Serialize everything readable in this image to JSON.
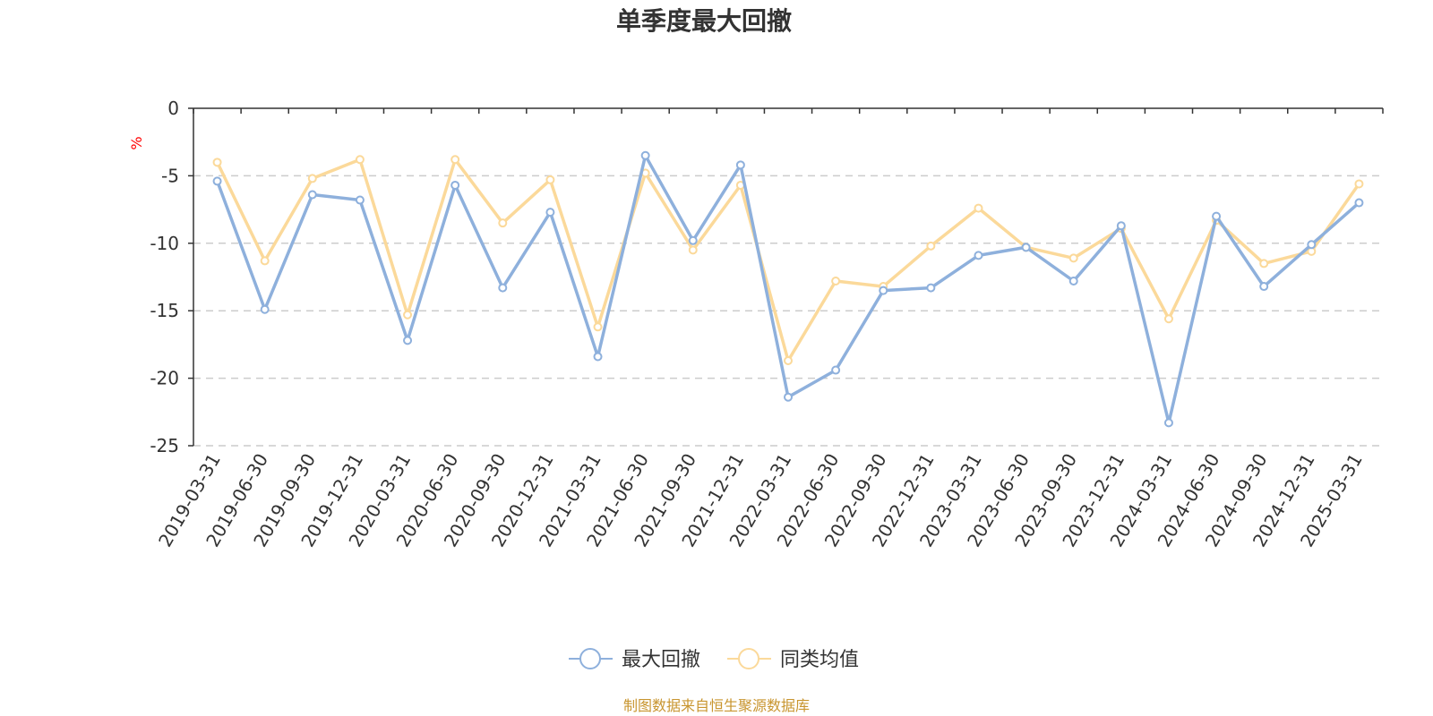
{
  "chart_data": {
    "type": "line",
    "title": "单季度最大回撤",
    "ylabel": "%",
    "ylim": [
      -25,
      0
    ],
    "yticks": [
      0,
      -5,
      -10,
      -15,
      -20,
      -25
    ],
    "grid": "dashed horizontal",
    "legend_position": "bottom-center",
    "categories": [
      "2019-03-31",
      "2019-06-30",
      "2019-09-30",
      "2019-12-31",
      "2020-03-31",
      "2020-06-30",
      "2020-09-30",
      "2020-12-31",
      "2021-03-31",
      "2021-06-30",
      "2021-09-30",
      "2021-12-31",
      "2022-03-31",
      "2022-06-30",
      "2022-09-30",
      "2022-12-31",
      "2023-03-31",
      "2023-06-30",
      "2023-09-30",
      "2023-12-31",
      "2024-03-31",
      "2024-06-30",
      "2024-09-30",
      "2024-12-31",
      "2025-03-31"
    ],
    "series": [
      {
        "name": "最大回撤",
        "color": "#8eb0dc",
        "values": [
          -5.4,
          -14.9,
          -6.4,
          -6.8,
          -17.2,
          -5.7,
          -13.3,
          -7.7,
          -18.4,
          -3.5,
          -9.8,
          -4.2,
          -21.4,
          -19.4,
          -13.5,
          -13.3,
          -10.9,
          -10.3,
          -12.8,
          -8.7,
          -23.3,
          -8.0,
          -13.2,
          -10.1,
          -7.0
        ]
      },
      {
        "name": "同类均值",
        "color": "#fbd99a",
        "values": [
          -4.0,
          -11.3,
          -5.2,
          -3.8,
          -15.3,
          -3.8,
          -8.5,
          -5.3,
          -16.2,
          -4.8,
          -10.5,
          -5.7,
          -18.7,
          -12.8,
          -13.2,
          -10.2,
          -7.4,
          -10.3,
          -11.1,
          -8.9,
          -15.6,
          -8.3,
          -11.5,
          -10.6,
          -5.6
        ]
      }
    ]
  },
  "source_note": "制图数据来自恒生聚源数据库",
  "colors": {
    "source_note": "#c8952f",
    "axis": "#333333",
    "grid": "#cccccc",
    "unit": "#ff0000"
  }
}
